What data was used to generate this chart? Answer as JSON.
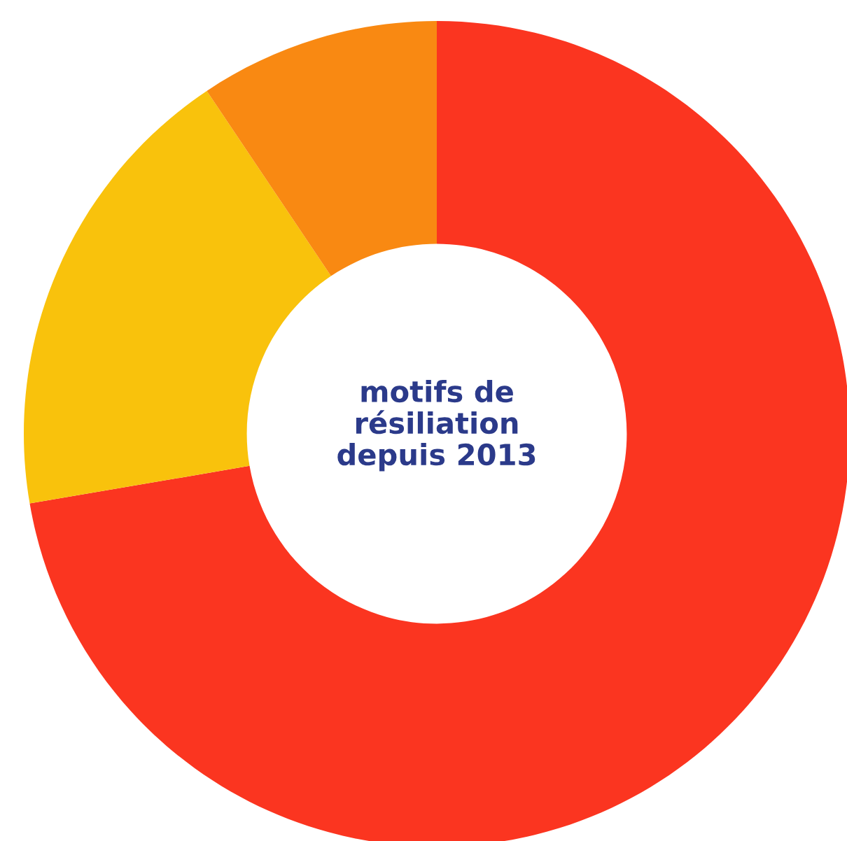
{
  "chart_data": {
    "type": "donut",
    "title": "motifs de\nrésiliation\ndepuis 2013",
    "categories": [
      null,
      null,
      null
    ],
    "values": [
      72.3,
      18.3,
      9.4
    ],
    "colors": [
      "#fb3520",
      "#f9c20c",
      "#f98912"
    ]
  }
}
